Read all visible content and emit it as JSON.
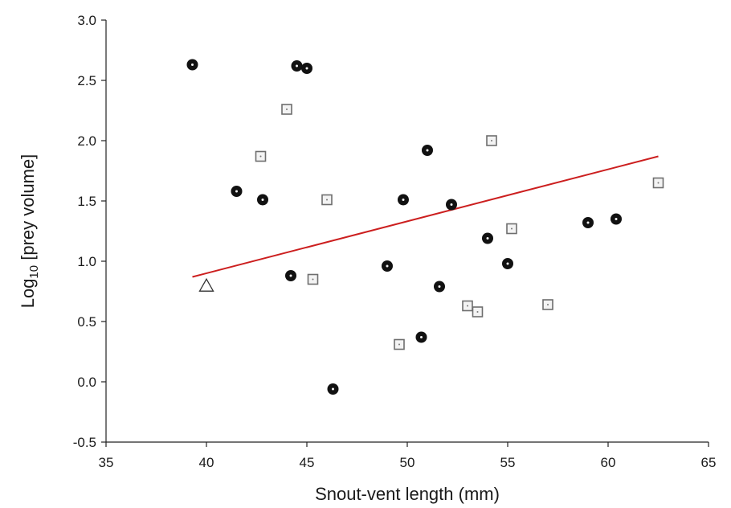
{
  "chart_data": {
    "type": "scatter",
    "title": "",
    "xlabel": "Snout-vent length (mm)",
    "ylabel_main": "Log",
    "ylabel_sub": "10",
    "ylabel_rest": " [prey volume]",
    "xlim": [
      35,
      65
    ],
    "ylim": [
      -0.5,
      3.0
    ],
    "xticks": [
      "35",
      "40",
      "45",
      "50",
      "55",
      "60",
      "65"
    ],
    "yticks": [
      "-0.5",
      "0.0",
      "0.5",
      "1.0",
      "1.5",
      "2.0",
      "2.5",
      "3.0"
    ],
    "grid": false,
    "legend": "none",
    "series": [
      {
        "marker": "filled-circle",
        "color": "#111111",
        "points": [
          [
            39.3,
            2.63
          ],
          [
            44.5,
            2.62
          ],
          [
            45.0,
            2.6
          ],
          [
            41.5,
            1.58
          ],
          [
            42.8,
            1.51
          ],
          [
            51.0,
            1.92
          ],
          [
            49.8,
            1.51
          ],
          [
            52.2,
            1.47
          ],
          [
            54.0,
            1.19
          ],
          [
            55.0,
            0.98
          ],
          [
            59.0,
            1.32
          ],
          [
            60.4,
            1.35
          ],
          [
            44.2,
            0.88
          ],
          [
            49.0,
            0.96
          ],
          [
            51.6,
            0.79
          ],
          [
            50.7,
            0.37
          ],
          [
            46.3,
            -0.06
          ]
        ]
      },
      {
        "marker": "open-square",
        "color": "#6e6e6e",
        "points": [
          [
            44.0,
            2.26
          ],
          [
            42.7,
            1.87
          ],
          [
            46.0,
            1.51
          ],
          [
            45.3,
            0.85
          ],
          [
            54.2,
            2.0
          ],
          [
            55.2,
            1.27
          ],
          [
            62.5,
            1.65
          ],
          [
            53.0,
            0.63
          ],
          [
            53.5,
            0.58
          ],
          [
            57.0,
            0.64
          ],
          [
            49.6,
            0.31
          ]
        ]
      },
      {
        "marker": "open-triangle",
        "color": "#333333",
        "points": [
          [
            40.0,
            0.79
          ]
        ]
      }
    ],
    "fit_line": {
      "color": "#cc1f1f",
      "points": [
        [
          39.3,
          0.87
        ],
        [
          62.5,
          1.87
        ]
      ]
    }
  }
}
